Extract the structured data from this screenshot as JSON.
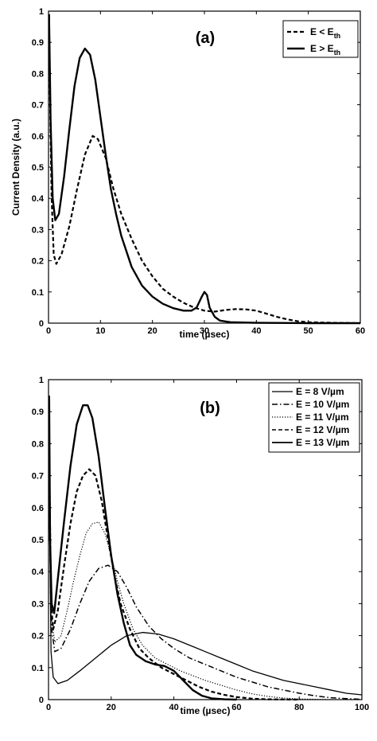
{
  "chart_data": [
    {
      "type": "line",
      "panel_label": "(a)",
      "xlabel": "time (µsec)",
      "ylabel": "Current Density (a.u.)",
      "xlim": [
        0,
        60
      ],
      "ylim": [
        0,
        1
      ],
      "xticks": [
        "0",
        "10",
        "20",
        "30",
        "40",
        "50",
        "60"
      ],
      "yticks": [
        "0",
        "0.1",
        "0.2",
        "0.3",
        "0.4",
        "0.5",
        "0.6",
        "0.7",
        "0.8",
        "0.9",
        "1"
      ],
      "legend_position": "top-right",
      "series": [
        {
          "name": "E < E",
          "name_sub": "th",
          "style": "dashed",
          "points": [
            [
              0.1,
              0.99
            ],
            [
              0.3,
              0.7
            ],
            [
              0.6,
              0.4
            ],
            [
              1,
              0.22
            ],
            [
              1.5,
              0.19
            ],
            [
              2.5,
              0.22
            ],
            [
              4,
              0.31
            ],
            [
              5.5,
              0.43
            ],
            [
              7,
              0.54
            ],
            [
              8.5,
              0.6
            ],
            [
              9.5,
              0.59
            ],
            [
              11,
              0.53
            ],
            [
              12.5,
              0.43
            ],
            [
              14,
              0.35
            ],
            [
              16,
              0.27
            ],
            [
              18,
              0.2
            ],
            [
              20,
              0.15
            ],
            [
              22,
              0.11
            ],
            [
              24,
              0.085
            ],
            [
              26,
              0.065
            ],
            [
              28,
              0.05
            ],
            [
              30,
              0.04
            ],
            [
              32,
              0.037
            ],
            [
              34,
              0.042
            ],
            [
              36,
              0.045
            ],
            [
              38,
              0.044
            ],
            [
              40,
              0.04
            ],
            [
              42,
              0.03
            ],
            [
              44,
              0.02
            ],
            [
              46,
              0.012
            ],
            [
              48,
              0.006
            ],
            [
              50,
              0.003
            ],
            [
              55,
              0.001
            ],
            [
              60,
              0.0
            ]
          ]
        },
        {
          "name": "E > E",
          "name_sub": "th",
          "style": "solid",
          "points": [
            [
              0.1,
              0.99
            ],
            [
              0.4,
              0.65
            ],
            [
              0.8,
              0.4
            ],
            [
              1.3,
              0.33
            ],
            [
              2,
              0.35
            ],
            [
              3,
              0.47
            ],
            [
              4,
              0.62
            ],
            [
              5,
              0.76
            ],
            [
              6,
              0.85
            ],
            [
              7,
              0.88
            ],
            [
              8,
              0.86
            ],
            [
              9,
              0.78
            ],
            [
              10,
              0.66
            ],
            [
              11,
              0.54
            ],
            [
              12,
              0.43
            ],
            [
              13,
              0.35
            ],
            [
              14,
              0.28
            ],
            [
              16,
              0.18
            ],
            [
              18,
              0.12
            ],
            [
              20,
              0.085
            ],
            [
              22,
              0.062
            ],
            [
              24,
              0.048
            ],
            [
              26,
              0.04
            ],
            [
              27.5,
              0.04
            ],
            [
              28.5,
              0.05
            ],
            [
              29.5,
              0.085
            ],
            [
              30,
              0.1
            ],
            [
              30.5,
              0.09
            ],
            [
              31,
              0.05
            ],
            [
              32,
              0.02
            ],
            [
              33,
              0.008
            ],
            [
              35,
              0.003
            ],
            [
              40,
              0.001
            ],
            [
              50,
              0.0
            ],
            [
              60,
              0.0
            ]
          ]
        }
      ]
    },
    {
      "type": "line",
      "panel_label": "(b)",
      "xlabel": "time (µsec)",
      "ylabel": "",
      "xlim": [
        0,
        100
      ],
      "ylim": [
        0,
        1
      ],
      "xticks": [
        "0",
        "20",
        "40",
        "60",
        "80",
        "100"
      ],
      "yticks": [
        "0",
        "0.1",
        "0.2",
        "0.3",
        "0.4",
        "0.5",
        "0.6",
        "0.7",
        "0.8",
        "0.9",
        "1"
      ],
      "legend_position": "top-right",
      "series": [
        {
          "name": "E = 8 V/µm",
          "style": "solid-thin",
          "points": [
            [
              0.3,
              0.6
            ],
            [
              0.8,
              0.15
            ],
            [
              1.5,
              0.07
            ],
            [
              3,
              0.05
            ],
            [
              6,
              0.06
            ],
            [
              10,
              0.09
            ],
            [
              15,
              0.13
            ],
            [
              20,
              0.17
            ],
            [
              25,
              0.2
            ],
            [
              30,
              0.21
            ],
            [
              35,
              0.205
            ],
            [
              40,
              0.19
            ],
            [
              45,
              0.17
            ],
            [
              50,
              0.15
            ],
            [
              55,
              0.13
            ],
            [
              60,
              0.11
            ],
            [
              65,
              0.09
            ],
            [
              70,
              0.075
            ],
            [
              75,
              0.06
            ],
            [
              80,
              0.05
            ],
            [
              85,
              0.04
            ],
            [
              90,
              0.03
            ],
            [
              95,
              0.02
            ],
            [
              100,
              0.015
            ]
          ]
        },
        {
          "name": "E = 10 V/µm",
          "style": "dashdot",
          "points": [
            [
              0.3,
              0.55
            ],
            [
              1,
              0.22
            ],
            [
              2,
              0.15
            ],
            [
              4,
              0.16
            ],
            [
              7,
              0.22
            ],
            [
              10,
              0.3
            ],
            [
              13,
              0.37
            ],
            [
              16,
              0.41
            ],
            [
              19,
              0.42
            ],
            [
              22,
              0.4
            ],
            [
              25,
              0.35
            ],
            [
              28,
              0.29
            ],
            [
              32,
              0.23
            ],
            [
              36,
              0.19
            ],
            [
              40,
              0.16
            ],
            [
              45,
              0.13
            ],
            [
              50,
              0.11
            ],
            [
              55,
              0.09
            ],
            [
              60,
              0.07
            ],
            [
              65,
              0.055
            ],
            [
              70,
              0.04
            ],
            [
              75,
              0.03
            ],
            [
              80,
              0.02
            ],
            [
              85,
              0.012
            ],
            [
              90,
              0.006
            ],
            [
              95,
              0.003
            ],
            [
              100,
              0.001
            ]
          ]
        },
        {
          "name": "E = 11 V/µm",
          "style": "dotted",
          "points": [
            [
              0.3,
              0.6
            ],
            [
              1,
              0.25
            ],
            [
              2,
              0.18
            ],
            [
              4,
              0.2
            ],
            [
              6,
              0.28
            ],
            [
              8,
              0.37
            ],
            [
              10,
              0.45
            ],
            [
              12,
              0.52
            ],
            [
              14,
              0.55
            ],
            [
              16,
              0.555
            ],
            [
              18,
              0.52
            ],
            [
              20,
              0.45
            ],
            [
              22,
              0.37
            ],
            [
              24,
              0.3
            ],
            [
              27,
              0.22
            ],
            [
              30,
              0.17
            ],
            [
              34,
              0.13
            ],
            [
              38,
              0.11
            ],
            [
              42,
              0.09
            ],
            [
              46,
              0.075
            ],
            [
              50,
              0.06
            ],
            [
              55,
              0.045
            ],
            [
              60,
              0.03
            ],
            [
              65,
              0.018
            ],
            [
              70,
              0.01
            ],
            [
              75,
              0.005
            ],
            [
              80,
              0.002
            ],
            [
              90,
              0.0
            ]
          ]
        },
        {
          "name": "E = 12 V/µm",
          "style": "dashed",
          "points": [
            [
              0.3,
              0.7
            ],
            [
              0.8,
              0.3
            ],
            [
              1.5,
              0.22
            ],
            [
              3,
              0.28
            ],
            [
              5,
              0.42
            ],
            [
              7,
              0.55
            ],
            [
              9,
              0.65
            ],
            [
              11,
              0.7
            ],
            [
              13,
              0.72
            ],
            [
              15,
              0.7
            ],
            [
              17,
              0.62
            ],
            [
              19,
              0.5
            ],
            [
              21,
              0.39
            ],
            [
              23,
              0.3
            ],
            [
              26,
              0.22
            ],
            [
              29,
              0.16
            ],
            [
              32,
              0.13
            ],
            [
              36,
              0.1
            ],
            [
              40,
              0.08
            ],
            [
              44,
              0.06
            ],
            [
              48,
              0.04
            ],
            [
              52,
              0.025
            ],
            [
              56,
              0.015
            ],
            [
              60,
              0.008
            ],
            [
              65,
              0.003
            ],
            [
              70,
              0.001
            ],
            [
              80,
              0.0
            ]
          ]
        },
        {
          "name": "E = 13 V/µm",
          "style": "solid",
          "points": [
            [
              0.2,
              0.95
            ],
            [
              0.5,
              0.5
            ],
            [
              1,
              0.3
            ],
            [
              1.8,
              0.27
            ],
            [
              3,
              0.38
            ],
            [
              5,
              0.56
            ],
            [
              7,
              0.73
            ],
            [
              9,
              0.86
            ],
            [
              11,
              0.92
            ],
            [
              12.5,
              0.92
            ],
            [
              14,
              0.88
            ],
            [
              16,
              0.76
            ],
            [
              18,
              0.6
            ],
            [
              20,
              0.45
            ],
            [
              22,
              0.33
            ],
            [
              24,
              0.24
            ],
            [
              26,
              0.17
            ],
            [
              28,
              0.14
            ],
            [
              31,
              0.12
            ],
            [
              34,
              0.11
            ],
            [
              37,
              0.105
            ],
            [
              40,
              0.09
            ],
            [
              43,
              0.06
            ],
            [
              46,
              0.03
            ],
            [
              49,
              0.012
            ],
            [
              52,
              0.004
            ],
            [
              56,
              0.001
            ],
            [
              60,
              0.0
            ]
          ]
        }
      ]
    }
  ]
}
